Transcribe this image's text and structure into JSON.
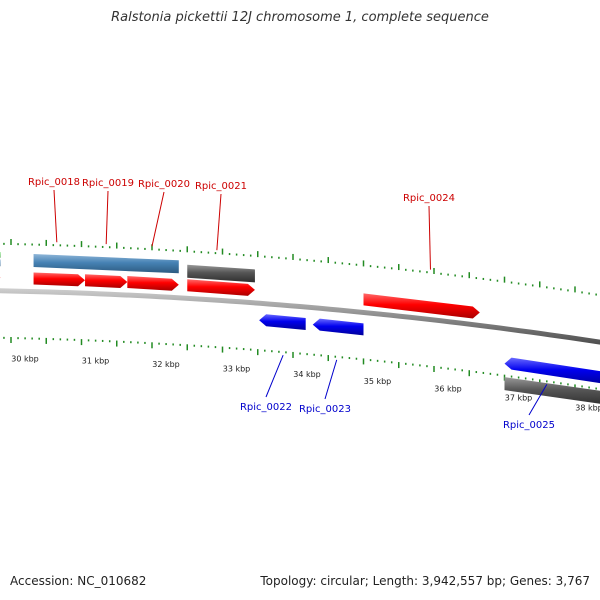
{
  "title": "Ralstonia pickettii 12J chromosome 1, complete sequence",
  "footer": {
    "accession": "Accession: NC_010682",
    "summary": "Topology: circular; Length: 3,942,557 bp; Genes: 3,767"
  },
  "colors": {
    "forward_cds": "#ff0000",
    "reverse_cds": "#0000ee",
    "pseudo": "#555555",
    "rna": "#4682b4",
    "misc": "#22bb22",
    "tick": "#228b22",
    "forward_label": "#cc0000",
    "reverse_label": "#0000cc",
    "backbone": "#8a8a8a"
  },
  "scale": {
    "unit": "kbp",
    "labels": [
      {
        "kbp": 30,
        "text": "30 kbp"
      },
      {
        "kbp": 31,
        "text": "31 kbp"
      },
      {
        "kbp": 32,
        "text": "32 kbp"
      },
      {
        "kbp": 33,
        "text": "33 kbp"
      },
      {
        "kbp": 34,
        "text": "34 kbp"
      },
      {
        "kbp": 35,
        "text": "35 kbp"
      },
      {
        "kbp": 36,
        "text": "36 kbp"
      },
      {
        "kbp": 37,
        "text": "37 kbp"
      },
      {
        "kbp": 38,
        "text": "38 kbp"
      }
    ]
  },
  "genes": [
    {
      "label": "",
      "strand": "+",
      "kind": "cds",
      "start_kbp": 29.4,
      "end_kbp": 29.85
    },
    {
      "label": "Rpic_0018",
      "strand": "+",
      "kind": "cds",
      "start_kbp": 30.32,
      "end_kbp": 31.05
    },
    {
      "label": "Rpic_0019",
      "strand": "+",
      "kind": "cds",
      "start_kbp": 31.05,
      "end_kbp": 31.65
    },
    {
      "label": "Rpic_0020",
      "strand": "+",
      "kind": "cds",
      "start_kbp": 31.65,
      "end_kbp": 32.38
    },
    {
      "label": "Rpic_0021",
      "strand": "+",
      "kind": "cds",
      "start_kbp": 32.5,
      "end_kbp": 33.46
    },
    {
      "label": "Rpic_0022",
      "strand": "-",
      "kind": "cds",
      "start_kbp": 33.52,
      "end_kbp": 34.18
    },
    {
      "label": "Rpic_0023",
      "strand": "-",
      "kind": "cds",
      "start_kbp": 34.28,
      "end_kbp": 35.0
    },
    {
      "label": "Rpic_0024",
      "strand": "+",
      "kind": "cds",
      "start_kbp": 35.0,
      "end_kbp": 36.65
    },
    {
      "label": "Rpic_0025",
      "strand": "-",
      "kind": "cds",
      "start_kbp": 37.0,
      "end_kbp": 38.55
    }
  ],
  "features": [
    {
      "kind": "misc",
      "strand": "+",
      "start_kbp": 29.4,
      "end_kbp": 29.85
    },
    {
      "kind": "rna",
      "strand": "+",
      "start_kbp": 29.4,
      "end_kbp": 29.85
    },
    {
      "kind": "rna",
      "strand": "+",
      "start_kbp": 30.32,
      "end_kbp": 32.38
    },
    {
      "kind": "pseudo",
      "strand": "+",
      "start_kbp": 32.5,
      "end_kbp": 33.46
    },
    {
      "kind": "pseudo",
      "strand": "-",
      "start_kbp": 37.0,
      "end_kbp": 38.55
    }
  ]
}
